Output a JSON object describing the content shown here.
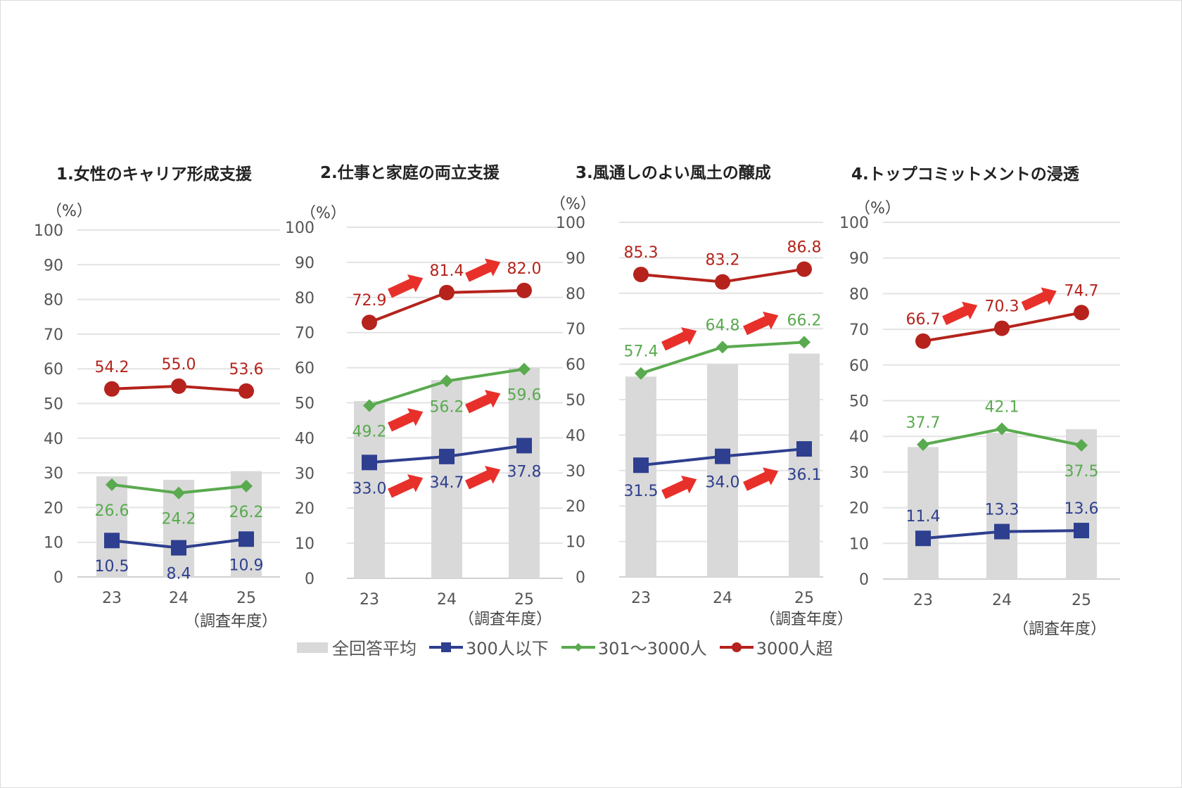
{
  "chart_data": [
    {
      "type": "bar+line",
      "title": "1.女性のキャリア形成支援",
      "ylabel": "（%）",
      "xlabel": "（調査年度）",
      "ylim": [
        0,
        100
      ],
      "yticks": [
        0,
        10,
        20,
        30,
        40,
        50,
        60,
        70,
        80,
        90,
        100
      ],
      "categories": [
        "23",
        "24",
        "25"
      ],
      "series": [
        {
          "name": "全回答平均",
          "kind": "bar",
          "values": [
            29,
            28,
            30.5
          ],
          "labels": false
        },
        {
          "name": "300人以下",
          "kind": "line",
          "values": [
            10.5,
            8.4,
            10.9
          ],
          "labels": [
            "10.5",
            "8.4",
            "10.9"
          ],
          "label_side": [
            "below",
            "below",
            "below"
          ],
          "arrows": false
        },
        {
          "name": "301～3000人",
          "kind": "line",
          "values": [
            26.6,
            24.2,
            26.2
          ],
          "labels": [
            "26.6",
            "24.2",
            "26.2"
          ],
          "label_side": [
            "below",
            "below",
            "below"
          ],
          "arrows": false
        },
        {
          "name": "3000人超",
          "kind": "line",
          "values": [
            54.2,
            55.0,
            53.6
          ],
          "labels": [
            "54.2",
            "55.0",
            "53.6"
          ],
          "label_side": [
            "above",
            "above",
            "above"
          ],
          "arrows": false
        }
      ]
    },
    {
      "type": "bar+line",
      "title": "2.仕事と家庭の両立支援",
      "ylabel": "（%）",
      "xlabel": "（調査年度）",
      "ylim": [
        0,
        100
      ],
      "yticks": [
        0,
        10,
        20,
        30,
        40,
        50,
        60,
        70,
        80,
        90,
        100
      ],
      "categories": [
        "23",
        "24",
        "25"
      ],
      "series": [
        {
          "name": "全回答平均",
          "kind": "bar",
          "values": [
            50.5,
            56.5,
            60
          ],
          "labels": false
        },
        {
          "name": "300人以下",
          "kind": "line",
          "values": [
            33.0,
            34.7,
            37.8
          ],
          "labels": [
            "33.0",
            "34.7",
            "37.8"
          ],
          "label_side": [
            "below",
            "below",
            "below"
          ],
          "arrows": true
        },
        {
          "name": "301～3000人",
          "kind": "line",
          "values": [
            49.2,
            56.2,
            59.6
          ],
          "labels": [
            "49.2",
            "56.2",
            "59.6"
          ],
          "label_side": [
            "below",
            "below",
            "below"
          ],
          "arrows": true
        },
        {
          "name": "3000人超",
          "kind": "line",
          "values": [
            72.9,
            81.4,
            82.0
          ],
          "labels": [
            "72.9",
            "81.4",
            "82.0"
          ],
          "label_side": [
            "above",
            "above",
            "above"
          ],
          "arrows": true
        }
      ]
    },
    {
      "type": "bar+line",
      "title": "3.風通しのよい風土の醸成",
      "ylabel": "（%）",
      "xlabel": "（調査年度）",
      "ylim": [
        0,
        100
      ],
      "yticks": [
        0,
        10,
        20,
        30,
        40,
        50,
        60,
        70,
        80,
        90,
        100
      ],
      "categories": [
        "23",
        "24",
        "25"
      ],
      "series": [
        {
          "name": "全回答平均",
          "kind": "bar",
          "values": [
            56.5,
            60,
            63
          ],
          "labels": false
        },
        {
          "name": "300人以下",
          "kind": "line",
          "values": [
            31.5,
            34.0,
            36.1
          ],
          "labels": [
            "31.5",
            "34.0",
            "36.1"
          ],
          "label_side": [
            "below",
            "below",
            "below"
          ],
          "arrows": true
        },
        {
          "name": "301～3000人",
          "kind": "line",
          "values": [
            57.4,
            64.8,
            66.2
          ],
          "labels": [
            "57.4",
            "64.8",
            "66.2"
          ],
          "label_side": [
            "above",
            "above",
            "above"
          ],
          "arrows": true
        },
        {
          "name": "3000人超",
          "kind": "line",
          "values": [
            85.3,
            83.2,
            86.8
          ],
          "labels": [
            "85.3",
            "83.2",
            "86.8"
          ],
          "label_side": [
            "above",
            "above",
            "above"
          ],
          "arrows": false
        }
      ]
    },
    {
      "type": "bar+line",
      "title": "4.トップコミットメントの浸透",
      "ylabel": "（%）",
      "xlabel": "（調査年度）",
      "ylim": [
        0,
        100
      ],
      "yticks": [
        0,
        10,
        20,
        30,
        40,
        50,
        60,
        70,
        80,
        90,
        100
      ],
      "categories": [
        "23",
        "24",
        "25"
      ],
      "series": [
        {
          "name": "全回答平均",
          "kind": "bar",
          "values": [
            37,
            41,
            42
          ],
          "labels": false
        },
        {
          "name": "300人以下",
          "kind": "line",
          "values": [
            11.4,
            13.3,
            13.6
          ],
          "labels": [
            "11.4",
            "13.3",
            "13.6"
          ],
          "label_side": [
            "above",
            "above",
            "above"
          ],
          "arrows": false
        },
        {
          "name": "301～3000人",
          "kind": "line",
          "values": [
            37.7,
            42.1,
            37.5
          ],
          "labels": [
            "37.7",
            "42.1",
            "37.5"
          ],
          "label_side": [
            "above",
            "above",
            "below"
          ],
          "arrows": false
        },
        {
          "name": "3000人超",
          "kind": "line",
          "values": [
            66.7,
            70.3,
            74.7
          ],
          "labels": [
            "66.7",
            "70.3",
            "74.7"
          ],
          "label_side": [
            "above",
            "above",
            "above"
          ],
          "arrows": true
        }
      ]
    }
  ],
  "legend": [
    {
      "name": "全回答平均",
      "marker": "bar",
      "color": "#d9d9d9"
    },
    {
      "name": "300人以下",
      "marker": "square",
      "color": "#2e3f8f"
    },
    {
      "name": "301～3000人",
      "marker": "diamond",
      "color": "#5aaa4f"
    },
    {
      "name": "3000人超",
      "marker": "circle",
      "color": "#b5231c"
    }
  ],
  "colors": {
    "bar": "#d9d9d9",
    "300人以下": "#2e3f8f",
    "301～3000人": "#5aaa4f",
    "3000人超": "#b5231c",
    "arrow": "#e8302a",
    "grid": "#e3e3e3",
    "tick": "#555555"
  }
}
